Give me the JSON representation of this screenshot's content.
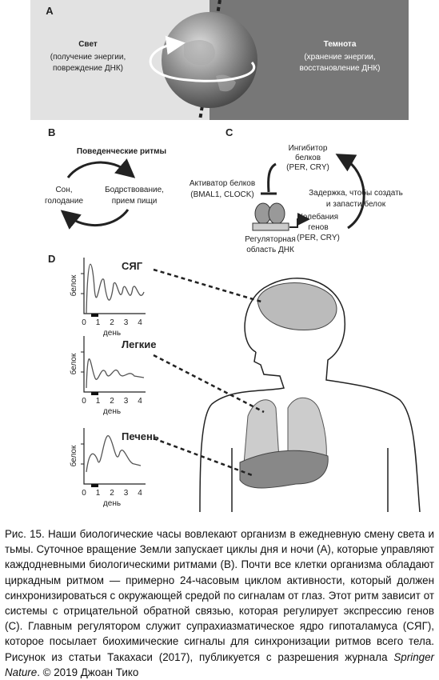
{
  "panel_a": {
    "label": "A",
    "light": {
      "title": "Свет",
      "lines": [
        "(получение энергии,",
        "повреждение ДНК)"
      ]
    },
    "dark": {
      "title": "Темнота",
      "lines": [
        "(хранение энергии,",
        "восстановление ДНК)"
      ]
    }
  },
  "panel_b": {
    "label": "B",
    "title": "Поведенческие ритмы",
    "left": [
      "Сон,",
      "голодание"
    ],
    "right": [
      "Бодрствование,",
      "прием пищи"
    ]
  },
  "panel_c": {
    "label": "C",
    "inhibitor": [
      "Ингибитор",
      "белков",
      "(PER, CRY)"
    ],
    "activator": [
      "Активатор белков",
      "(BMAL1, CLOCK)"
    ],
    "delay": [
      "Задержка, чтобы создать",
      "и запасти белок"
    ],
    "oscillation": [
      "Колебания",
      "генов",
      "(PER, CRY)"
    ],
    "region": [
      "Регуляторная",
      "область ДНК"
    ]
  },
  "panel_d": {
    "label": "D",
    "plots": [
      {
        "name": "СЯГ",
        "ylabel": "белок",
        "xlabel": "день",
        "xticks": [
          0,
          1,
          2,
          3,
          4
        ]
      },
      {
        "name": "Легкие",
        "ylabel": "белок",
        "xlabel": "день",
        "xticks": [
          0,
          1,
          2,
          3,
          4
        ]
      },
      {
        "name": "Печень",
        "ylabel": "белок",
        "xlabel": "день",
        "xticks": [
          0,
          1,
          2,
          3,
          4
        ]
      }
    ]
  },
  "caption": {
    "text": "Рис. 15. Наши биологические часы вовлекают организм в ежедневную смену света и тьмы. Суточное вращение Земли запускает циклы дня и ночи (А), которые управляют каждодневными биологическими ритмами (В). Почти все клетки организма обладают циркадным ритмом — примерно 24-часовым циклом активности, который должен синхронизироваться с окружающей средой по сигналам от глаз. Этот ритм зависит от системы с отрицательной обратной связью, которая регулирует экспрессию генов (С). Главным регулятором служит супрахиазматическое ядро гипоталамуса (СЯГ), которое посылает биохимические сигналы для синхронизации ритмов всего тела. Рисунок из статьи Такахаси (2017), публикуется с разрешения журнала ",
    "italic": "Springer Nature",
    "end": ". © 2019 Джоан Тико"
  }
}
